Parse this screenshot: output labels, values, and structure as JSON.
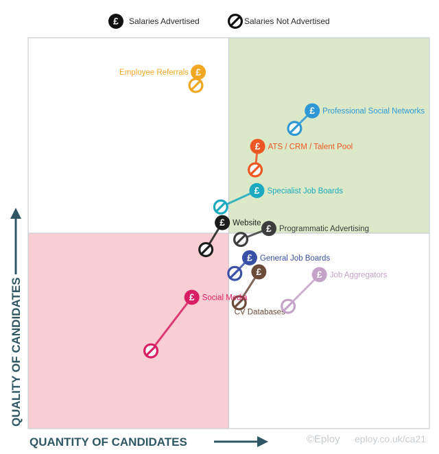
{
  "chart_data": {
    "type": "scatter",
    "xlabel": "QUANTITY OF CANDIDATES",
    "ylabel": "QUALITY OF CANDIDATES",
    "xlim": [
      0,
      100
    ],
    "ylim": [
      0,
      100
    ],
    "midpoint": {
      "x": 50,
      "y": 50
    },
    "quadrant_colors": {
      "top_right": "#dbe9c9",
      "bottom_left": "#f9cdd4",
      "other": "#ffffff"
    },
    "legend": {
      "position": "top",
      "entries": [
        {
          "label": "Salaries Advertised",
          "icon": "pound-icon"
        },
        {
          "label": "Salaries Not Advertised",
          "icon": "no-salary-icon"
        }
      ]
    },
    "series": [
      {
        "label": "Employee Referrals",
        "color": "#f0a823",
        "advertised": [
          42.4,
          91.2
        ],
        "not_advertised": [
          41.8,
          87.8
        ],
        "label_side": "left"
      },
      {
        "label": "Professional Social Networks",
        "color": "#2f97d4",
        "advertised": [
          70.8,
          81.3
        ],
        "not_advertised": [
          66.4,
          76.8
        ],
        "label_side": "right"
      },
      {
        "label": "ATS / CRM / Talent Pool",
        "color": "#ef5724",
        "advertised": [
          57.2,
          72.2
        ],
        "not_advertised": [
          56.6,
          66.2
        ],
        "label_side": "right"
      },
      {
        "label": "Specialist Job Boards",
        "color": "#1baabf",
        "advertised": [
          57.0,
          60.9
        ],
        "not_advertised": [
          48.0,
          56.7
        ],
        "label_side": "right"
      },
      {
        "label": "Website",
        "color": "#1c1c1c",
        "advertised": [
          48.4,
          52.7
        ],
        "not_advertised": [
          44.3,
          45.8
        ],
        "label_side": "right"
      },
      {
        "label": "Programmatic Advertising",
        "color": "#3d3d3d",
        "advertised": [
          60.0,
          51.2
        ],
        "not_advertised": [
          53.0,
          48.4
        ],
        "label_side": "right"
      },
      {
        "label": "General Job Boards",
        "color": "#3a4fa6",
        "advertised": [
          55.2,
          43.7
        ],
        "not_advertised": [
          51.5,
          39.7
        ],
        "label_side": "right"
      },
      {
        "label": "CV Databases",
        "color": "#6b4c3b",
        "advertised": [
          57.5,
          40.1
        ],
        "not_advertised": [
          52.6,
          32.2
        ],
        "label_side": "below"
      },
      {
        "label": "Job Aggregators",
        "color": "#c5a3c8",
        "advertised": [
          72.6,
          39.4
        ],
        "not_advertised": [
          64.8,
          31.3
        ],
        "label_side": "right"
      },
      {
        "label": "Social Media",
        "color": "#d81f63",
        "advertised": [
          40.8,
          33.6
        ],
        "not_advertised": [
          30.6,
          19.9
        ],
        "label_side": "right"
      }
    ]
  },
  "credit": {
    "logo": "©Eploy",
    "url": "eploy.co.uk/ca21"
  }
}
